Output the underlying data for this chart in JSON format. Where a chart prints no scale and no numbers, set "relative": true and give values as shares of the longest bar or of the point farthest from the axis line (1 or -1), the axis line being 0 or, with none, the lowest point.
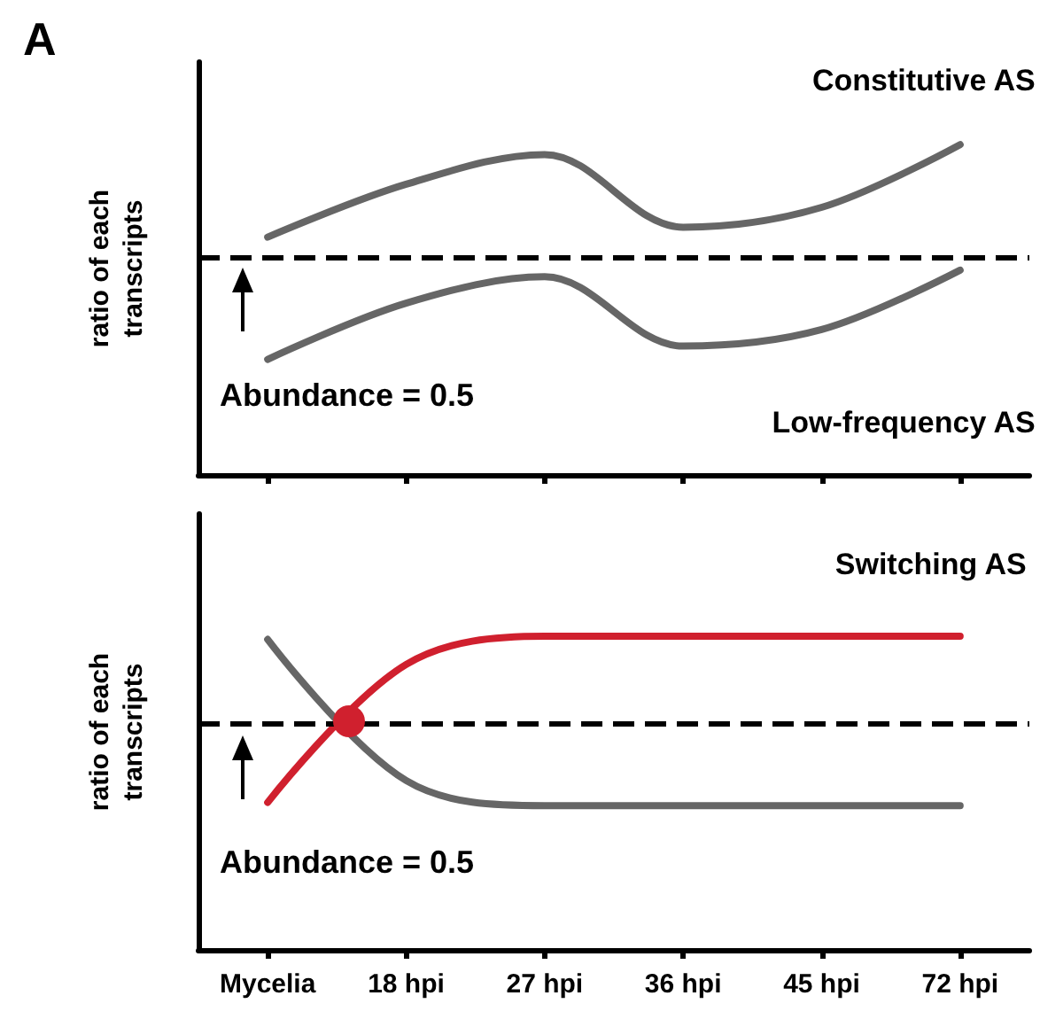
{
  "chart_data": [
    {
      "type": "line",
      "title": "A",
      "ylabel": "ratio of each transcripts",
      "relative": true,
      "tick_labels": false,
      "legend": false,
      "marker": "none",
      "line_style": "solid",
      "categories": [
        null,
        null,
        null,
        null,
        null,
        null
      ],
      "series": [
        {
          "name": "Constitutive AS",
          "color": "#666666",
          "values": [
            0.72,
            0.88,
            0.97,
            0.75,
            0.81,
            1
          ]
        },
        {
          "name": "Low-frequency AS",
          "color": "#666666",
          "values": [
            0.35,
            0.52,
            0.6,
            0.39,
            0.44,
            0.62
          ]
        }
      ],
      "annotations": [
        "Abundance = 0.5"
      ],
      "ref_lines": [
        {
          "axis": "y",
          "value": 0.66,
          "color": "#000000",
          "line_style": "dashed"
        }
      ]
    },
    {
      "type": "line",
      "title": "Switching AS",
      "ylabel": "ratio of each transcripts",
      "relative": true,
      "tick_labels": "x",
      "legend": false,
      "marker": "none",
      "line_style": "solid",
      "categories": [
        "Mycelia",
        "18 hpi",
        "27 hpi",
        "36 hpi",
        "45 hpi",
        "72 hpi"
      ],
      "series": [
        {
          "color": "#666666",
          "values": [
            0.99,
            0.54,
            0.46,
            0.46,
            0.46,
            0.46
          ]
        },
        {
          "color": "#d0202e",
          "values": [
            0.47,
            0.91,
            1,
            1,
            1,
            1
          ]
        }
      ],
      "annotations": [
        "Abundance = 0.5"
      ],
      "ref_lines": [
        {
          "axis": "y",
          "value": 0.72,
          "color": "#000000",
          "line_style": "dashed"
        }
      ]
    }
  ]
}
